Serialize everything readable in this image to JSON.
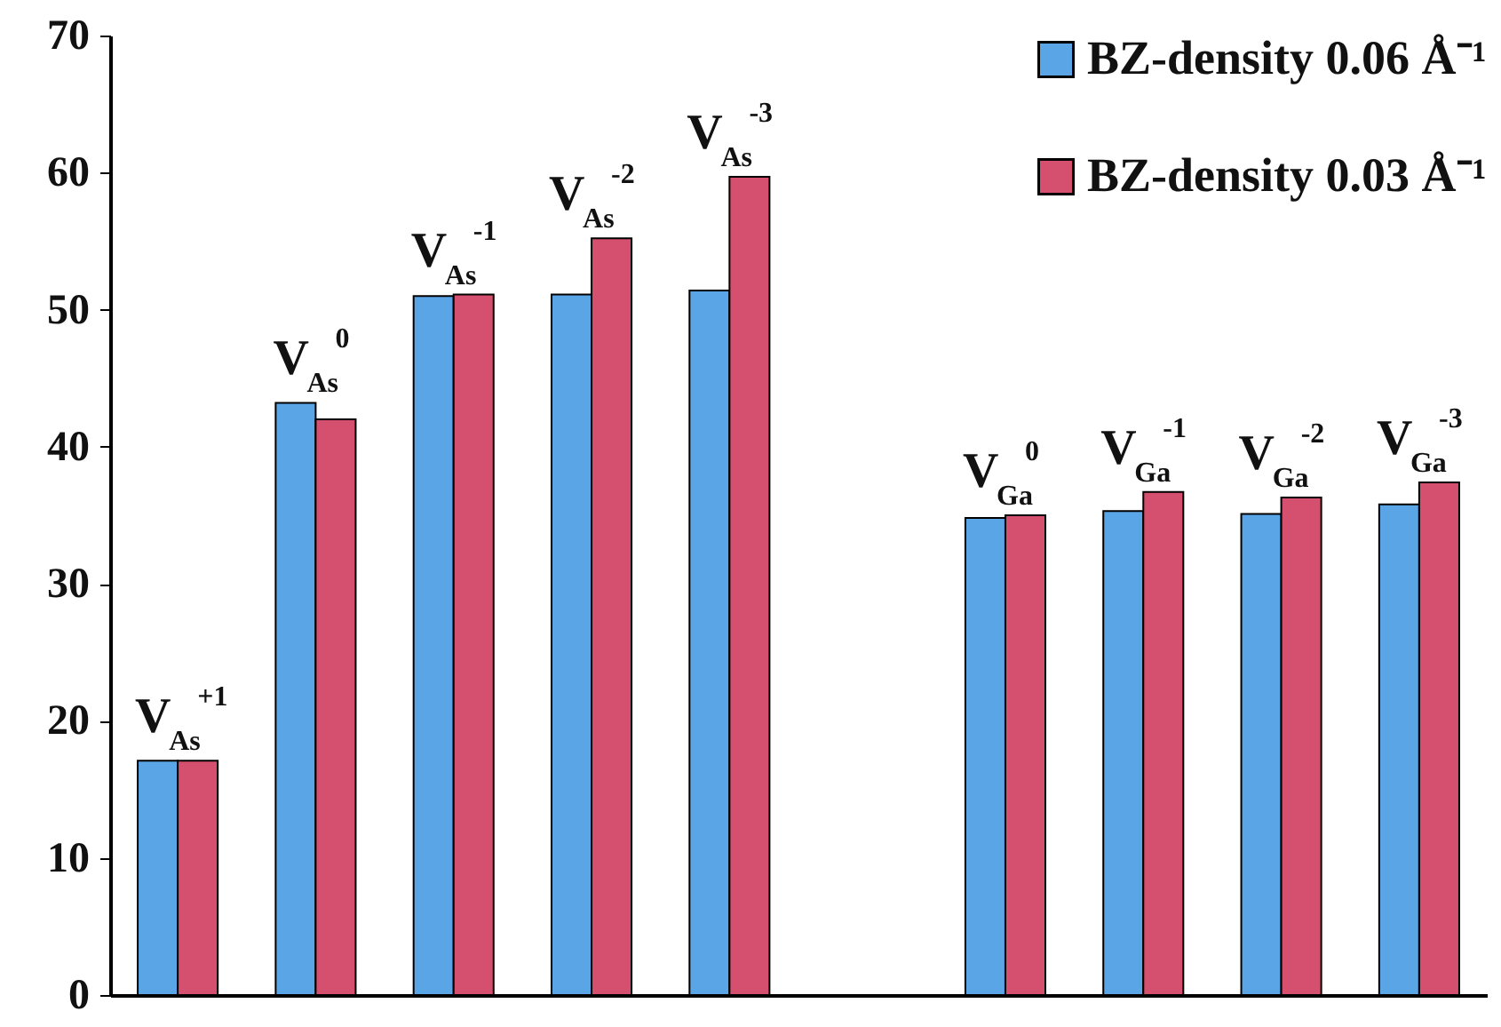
{
  "chart_data": {
    "type": "bar",
    "categories": [
      "V$_{As}$$^{+1}$",
      "V$_{As}$$^{0}$",
      "V$_{As}$$^{-1}$",
      "V$_{As}$$^{-2}$",
      "V$_{As}$$^{-3}$",
      null,
      "V$_{Ga}$$^{0}$",
      "V$_{Ga}$$^{-1}$",
      "V$_{Ga}$$^{-2}$",
      "V$_{Ga}$$^{-3}$"
    ],
    "series": [
      {
        "name": "BZ-density 0.06 Å⁻¹",
        "color": "#5aa5e6",
        "values": [
          17.1,
          43.2,
          51.0,
          51.1,
          51.4,
          null,
          34.8,
          35.3,
          35.1,
          35.8
        ]
      },
      {
        "name": "BZ-density 0.03 Å⁻¹",
        "color": "#d4506e",
        "values": [
          17.1,
          42.0,
          51.1,
          55.2,
          59.7,
          null,
          35.0,
          36.7,
          36.3,
          37.4
        ]
      }
    ],
    "ylim": [
      0,
      70
    ],
    "yticks": [
      0,
      10,
      20,
      30,
      40,
      50,
      60,
      70
    ],
    "legend": "top right",
    "tick_labels": "y"
  }
}
